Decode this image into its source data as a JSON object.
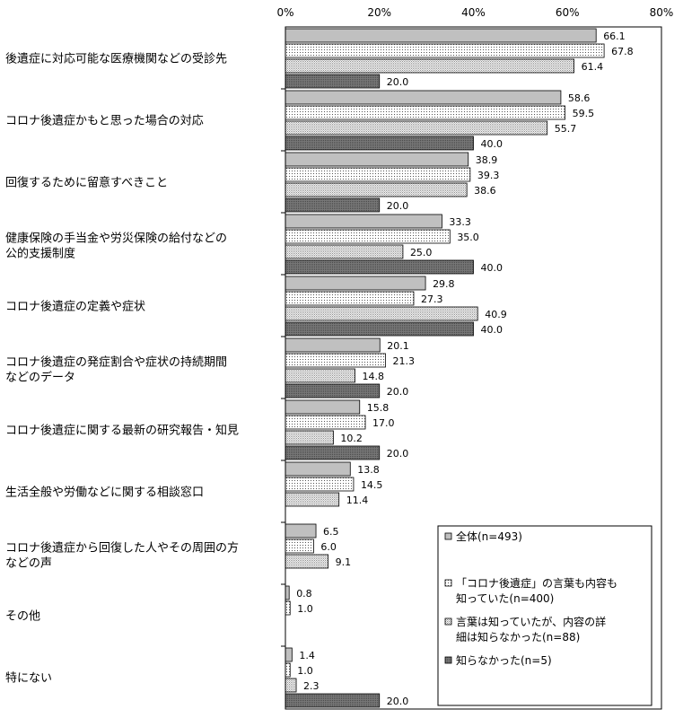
{
  "chart_data": {
    "type": "bar",
    "orientation": "horizontal",
    "title": "",
    "xlabel": "",
    "ylabel": "",
    "xlim": [
      0,
      80
    ],
    "x_ticks": [
      "0%",
      "20%",
      "40%",
      "60%",
      "80%"
    ],
    "grid": false,
    "legend_position": "bottom-right",
    "categories": [
      [
        "後遺症に対応可能な医療機関などの受診先"
      ],
      [
        "コロナ後遺症かもと思った場合の対応"
      ],
      [
        "回復するために留意すべきこと"
      ],
      [
        "健康保険の手当金や労災保険の給付などの",
        "公的支援制度"
      ],
      [
        "コロナ後遺症の定義や症状"
      ],
      [
        "コロナ後遺症の発症割合や症状の持続期間",
        "などのデータ"
      ],
      [
        "コロナ後遺症に関する最新の研究報告・知見"
      ],
      [
        "生活全般や労働などに関する相談窓口"
      ],
      [
        "コロナ後遺症から回復した人やその周囲の方",
        "などの声"
      ],
      [
        "その他"
      ],
      [
        "特にない"
      ]
    ],
    "series": [
      {
        "name": "全体(n=493)",
        "values": [
          66.1,
          58.6,
          38.9,
          33.3,
          29.8,
          20.1,
          15.8,
          13.8,
          6.5,
          0.8,
          1.4
        ]
      },
      {
        "name": "「コロナ後遺症」の言葉も内容も知っていた(n=400)",
        "values": [
          67.8,
          59.5,
          39.3,
          35.0,
          27.3,
          21.3,
          17.0,
          14.5,
          6.0,
          1.0,
          1.0
        ]
      },
      {
        "name": "言葉は知っていたが、内容の詳細は知らなかった(n=88)",
        "values": [
          61.4,
          55.7,
          38.6,
          25.0,
          40.9,
          14.8,
          10.2,
          11.4,
          9.1,
          null,
          2.3
        ]
      },
      {
        "name": "知らなかった(n=5)",
        "values": [
          20.0,
          40.0,
          20.0,
          40.0,
          40.0,
          20.0,
          20.0,
          null,
          null,
          null,
          20.0
        ]
      }
    ],
    "legend_lines": [
      [
        "全体(n=493)"
      ],
      [
        "「コロナ後遺症」の言葉も内容も",
        "知っていた(n=400)"
      ],
      [
        "言葉は知っていたが、内容の詳",
        "細は知らなかった(n=88)"
      ],
      [
        "知らなかった(n=5)"
      ]
    ],
    "colors": {
      "series_1": "#c0c0c0",
      "series_2": "#ffffff",
      "series_3": "#e4e4e4",
      "series_4": "#6e6e6e",
      "border": "#000000"
    }
  }
}
